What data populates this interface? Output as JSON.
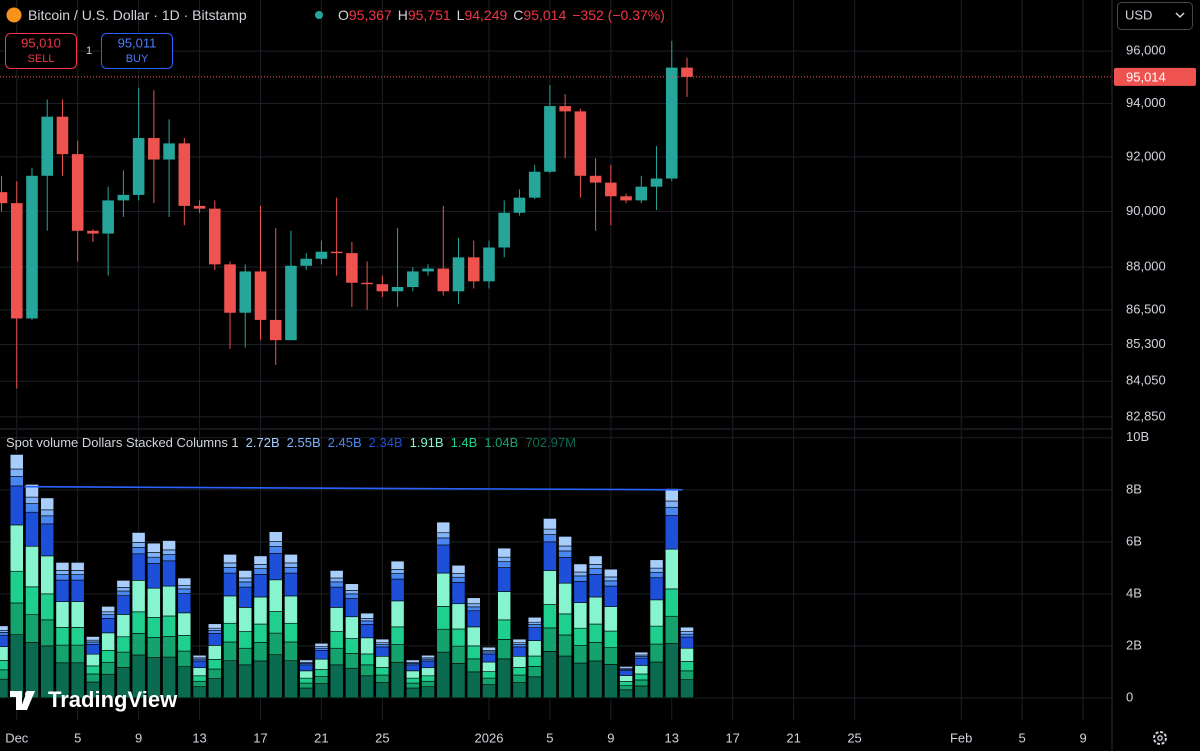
{
  "header": {
    "symbol": "Bitcoin / U.S. Dollar · 1D · Bitstamp",
    "open_label": "O",
    "open": "95,367",
    "high_label": "H",
    "high": "95,751",
    "low_label": "L",
    "low": "94,249",
    "close_label": "C",
    "close": "95,014",
    "change": "−352 (−0.37%)"
  },
  "trade": {
    "sell_price": "95,010",
    "sell": "SELL",
    "quantity": "1",
    "buy_price": "95,011",
    "buy": "BUY"
  },
  "currency": "USD",
  "watermark": "TradingView",
  "chart_data": [
    {
      "type": "candlestick",
      "log_scale": true,
      "grid": true,
      "up_color": "#26a69a",
      "down_color": "#ef5350",
      "ylim": [
        82480,
        98000
      ],
      "yticks": [
        {
          "value": 82850,
          "label": "82,850"
        },
        {
          "value": 84050,
          "label": "84,050"
        },
        {
          "value": 85300,
          "label": "85,300"
        },
        {
          "value": 86500,
          "label": "86,500"
        },
        {
          "value": 88000,
          "label": "88,000"
        },
        {
          "value": 90000,
          "label": "90,000"
        },
        {
          "value": 92000,
          "label": "92,000"
        },
        {
          "value": 94000,
          "label": "94,000"
        },
        {
          "value": 96000,
          "label": "96,000"
        }
      ],
      "open": [
        90700,
        90300,
        86200,
        91300,
        93500,
        92100,
        89300,
        89200,
        90400,
        90600,
        92700,
        91900,
        92500,
        90200,
        90100,
        88100,
        86400,
        87850,
        86150,
        85450,
        88050,
        88300,
        88550,
        88500,
        87450,
        87400,
        87150,
        87300,
        87850,
        87950,
        87150,
        88350,
        87500,
        88700,
        89950,
        90500,
        91450,
        93900,
        93700,
        91300,
        91050,
        90550,
        90400,
        90900,
        91200,
        95367
      ],
      "high": [
        91300,
        91100,
        91600,
        94150,
        94150,
        92600,
        89350,
        90900,
        91500,
        94600,
        94500,
        93400,
        92700,
        90400,
        90400,
        88200,
        88100,
        90200,
        89400,
        89300,
        88500,
        88950,
        90500,
        88900,
        88200,
        87700,
        89400,
        88000,
        88100,
        90200,
        89050,
        88950,
        88950,
        90400,
        90800,
        91700,
        94700,
        94350,
        93800,
        91950,
        91700,
        90650,
        91300,
        92400,
        96400,
        95751
      ],
      "low": [
        90000,
        83800,
        86150,
        89300,
        91300,
        88200,
        88900,
        87700,
        89800,
        90400,
        90300,
        89800,
        89500,
        89950,
        87900,
        85150,
        85200,
        85450,
        84600,
        85450,
        87900,
        88100,
        87700,
        86600,
        86500,
        86950,
        86600,
        87150,
        87700,
        87000,
        86700,
        87250,
        87250,
        88350,
        89850,
        90450,
        91400,
        91950,
        90500,
        89300,
        89500,
        90300,
        90300,
        90050,
        91100,
        94249
      ],
      "close": [
        90300,
        86200,
        91300,
        93500,
        92100,
        89300,
        89200,
        90400,
        90600,
        92700,
        91900,
        92500,
        90200,
        90100,
        88100,
        86400,
        87850,
        86150,
        85450,
        88050,
        88300,
        88550,
        88500,
        87450,
        87400,
        87150,
        87300,
        87850,
        87950,
        87150,
        88350,
        87500,
        88700,
        89950,
        90500,
        91450,
        93900,
        93700,
        91300,
        91050,
        90550,
        90400,
        90900,
        91200,
        95367,
        95014
      ],
      "last_price": {
        "value": 95014,
        "label": "95,014"
      }
    },
    {
      "type": "stacked_bar",
      "title": "Spot volume Dollars Stacked Columns 1",
      "grid": true,
      "ylim": [
        -0.85,
        10.3
      ],
      "yticks": [
        0,
        {
          "value": 2,
          "label": "2B"
        },
        {
          "value": 4,
          "label": "4B"
        },
        {
          "value": 6,
          "label": "6B"
        },
        {
          "value": 8,
          "label": "8B"
        },
        {
          "value": 10,
          "label": "10B"
        }
      ],
      "xlim": [
        -0.1,
        72.9
      ],
      "xticks": [
        {
          "value": 1,
          "label": "Dec"
        },
        5,
        9,
        13,
        17,
        21,
        25,
        {
          "value": 32,
          "label": "2026"
        },
        {
          "value": 36,
          "label": "5"
        },
        {
          "value": 40,
          "label": "9"
        },
        {
          "value": 44,
          "label": "13"
        },
        {
          "value": 48,
          "label": "17"
        },
        {
          "value": 52,
          "label": "21"
        },
        {
          "value": 56,
          "label": "25"
        },
        {
          "value": 63,
          "label": "Feb"
        },
        {
          "value": 67,
          "label": "5"
        },
        {
          "value": 71,
          "label": "9"
        }
      ],
      "trend_line": {
        "x": [
          1.5,
          44.7
        ],
        "y": [
          8.12,
          8.0
        ],
        "color": "#2962ff"
      },
      "series": [
        {
          "legend_label": "2.72B",
          "color": "#a9cdfb",
          "values": [
            0.17,
            0.56,
            0.49,
            0.46,
            0.31,
            0.31,
            0.14,
            0.21,
            0.27,
            0.38,
            0.36,
            0.36,
            0.28,
            0.1,
            0.17,
            0.33,
            0.29,
            0.33,
            0.38,
            0.33,
            0.09,
            0.13,
            0.29,
            0.26,
            0.2,
            0.14,
            0.32,
            0.09,
            0.1,
            0.41,
            0.31,
            0.23,
            0.12,
            0.35,
            0.14,
            0.19,
            0.41,
            0.37,
            0.31,
            0.33,
            0.3,
            0.07,
            0.11,
            0.32,
            0.48,
            0.17
          ]
        },
        {
          "legend_label": "2.55B",
          "color": "#7fb2f8",
          "values": [
            0.08,
            0.28,
            0.25,
            0.23,
            0.16,
            0.16,
            0.07,
            0.11,
            0.14,
            0.19,
            0.18,
            0.18,
            0.14,
            0.05,
            0.09,
            0.17,
            0.15,
            0.16,
            0.19,
            0.17,
            0.04,
            0.06,
            0.15,
            0.13,
            0.1,
            0.07,
            0.16,
            0.04,
            0.05,
            0.2,
            0.15,
            0.12,
            0.06,
            0.17,
            0.07,
            0.09,
            0.21,
            0.19,
            0.15,
            0.16,
            0.15,
            0.04,
            0.05,
            0.16,
            0.24,
            0.1
          ]
        },
        {
          "legend_label": "2.45B",
          "color": "#4a86f0",
          "values": [
            0.11,
            0.37,
            0.33,
            0.31,
            0.21,
            0.21,
            0.09,
            0.14,
            0.18,
            0.25,
            0.24,
            0.24,
            0.18,
            0.07,
            0.11,
            0.22,
            0.2,
            0.22,
            0.26,
            0.22,
            0.06,
            0.08,
            0.2,
            0.18,
            0.13,
            0.09,
            0.21,
            0.06,
            0.07,
            0.27,
            0.2,
            0.15,
            0.08,
            0.23,
            0.09,
            0.12,
            0.28,
            0.25,
            0.21,
            0.22,
            0.2,
            0.05,
            0.07,
            0.21,
            0.32,
            0.11
          ]
        },
        {
          "legend_label": "2.34B",
          "color": "#1e4fd8",
          "values": [
            0.44,
            1.5,
            1.31,
            1.23,
            0.83,
            0.83,
            0.38,
            0.56,
            0.72,
            1.02,
            0.95,
            0.97,
            0.74,
            0.26,
            0.46,
            0.88,
            0.78,
            0.87,
            1.02,
            0.88,
            0.23,
            0.34,
            0.78,
            0.7,
            0.52,
            0.36,
            0.84,
            0.23,
            0.26,
            1.08,
            0.82,
            0.62,
            0.31,
            0.92,
            0.36,
            0.5,
            1.1,
            0.99,
            0.82,
            0.87,
            0.79,
            0.19,
            0.28,
            0.85,
            1.29,
            0.43
          ]
        },
        {
          "legend_label": "1.91B",
          "color": "#86f5cf",
          "values": [
            0.53,
            1.78,
            1.56,
            1.46,
            0.99,
            0.99,
            0.45,
            0.67,
            0.86,
            1.21,
            1.13,
            1.15,
            0.87,
            0.31,
            0.54,
            1.05,
            0.93,
            1.04,
            1.22,
            1.05,
            0.28,
            0.4,
            0.93,
            0.84,
            0.62,
            0.43,
            1.0,
            0.28,
            0.31,
            1.28,
            0.97,
            0.73,
            0.37,
            1.09,
            0.43,
            0.59,
            1.31,
            1.18,
            0.98,
            1.04,
            0.94,
            0.23,
            0.33,
            1.01,
            1.53,
            0.51
          ]
        },
        {
          "legend_label": "1.4B",
          "color": "#1fcf8d",
          "values": [
            0.36,
            1.22,
            1.07,
            1.0,
            0.68,
            0.68,
            0.31,
            0.46,
            0.59,
            0.83,
            0.77,
            0.79,
            0.6,
            0.21,
            0.37,
            0.72,
            0.64,
            0.71,
            0.83,
            0.72,
            0.19,
            0.27,
            0.64,
            0.57,
            0.42,
            0.29,
            0.68,
            0.19,
            0.21,
            0.88,
            0.66,
            0.5,
            0.25,
            0.75,
            0.29,
            0.4,
            0.9,
            0.81,
            0.67,
            0.71,
            0.64,
            0.16,
            0.23,
            0.69,
            1.05,
            0.36
          ]
        },
        {
          "legend_label": "1.04B",
          "color": "#14a36d",
          "values": [
            0.36,
            1.22,
            1.07,
            1.0,
            0.68,
            0.68,
            0.31,
            0.46,
            0.59,
            0.83,
            0.77,
            0.79,
            0.6,
            0.21,
            0.37,
            0.72,
            0.64,
            0.71,
            0.83,
            0.72,
            0.19,
            0.27,
            0.64,
            0.57,
            0.42,
            0.29,
            0.68,
            0.19,
            0.21,
            0.88,
            0.66,
            0.5,
            0.25,
            0.75,
            0.29,
            0.4,
            0.9,
            0.81,
            0.67,
            0.71,
            0.64,
            0.16,
            0.23,
            0.69,
            1.05,
            0.34
          ]
        },
        {
          "legend_label": "702.97M",
          "color": "#0b6b50",
          "values": [
            0.72,
            2.43,
            2.13,
            2.0,
            1.35,
            1.35,
            0.61,
            0.91,
            1.17,
            1.65,
            1.55,
            1.57,
            1.2,
            0.43,
            0.74,
            1.43,
            1.27,
            1.42,
            1.66,
            1.43,
            0.38,
            0.55,
            1.27,
            1.14,
            0.85,
            0.59,
            1.37,
            0.38,
            0.43,
            1.76,
            1.33,
            1.0,
            0.51,
            1.5,
            0.59,
            0.81,
            1.79,
            1.61,
            1.34,
            1.42,
            1.29,
            0.31,
            0.46,
            1.38,
            2.09,
            0.7
          ]
        }
      ]
    }
  ]
}
